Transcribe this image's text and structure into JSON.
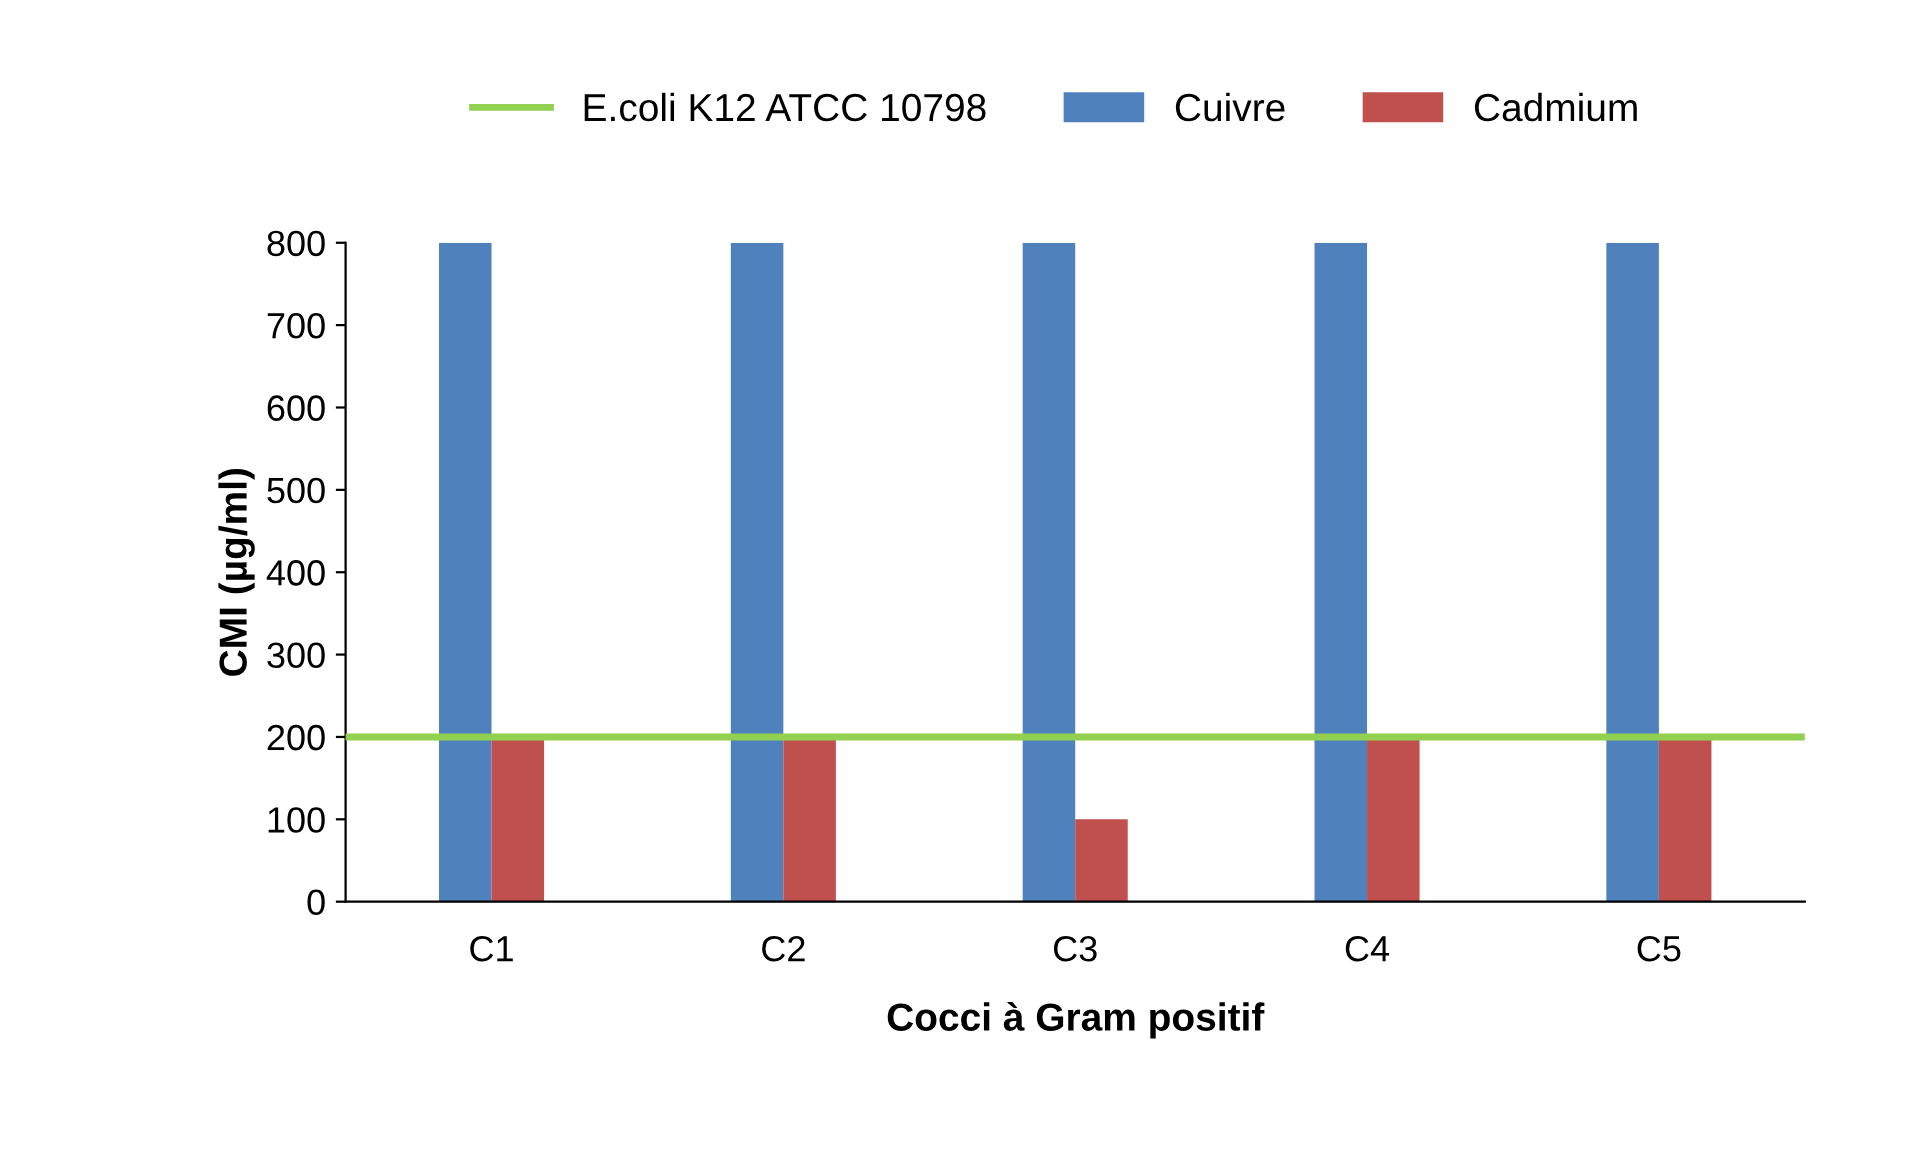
{
  "chart_data": {
    "type": "bar",
    "xlabel": "Cocci à Gram positif",
    "ylabel": "CMI (µg/ml)",
    "categories": [
      "C1",
      "C2",
      "C3",
      "C4",
      "C5"
    ],
    "series": [
      {
        "name": "Cuivre",
        "color": "#4f81bd",
        "values": [
          800,
          800,
          800,
          800,
          800
        ]
      },
      {
        "name": "Cadmium",
        "color": "#c0504d",
        "values": [
          200,
          200,
          100,
          200,
          200
        ]
      }
    ],
    "ref_lines": [
      {
        "axis": "y",
        "value": 200,
        "label": "E.coli K12 ATCC 10798",
        "color": "#92d050",
        "line_style": "solid"
      }
    ],
    "ylim": [
      0,
      800
    ],
    "yticks": [
      0,
      100,
      200,
      300,
      400,
      500,
      600,
      700,
      800
    ],
    "grid": false,
    "legend": "top"
  }
}
